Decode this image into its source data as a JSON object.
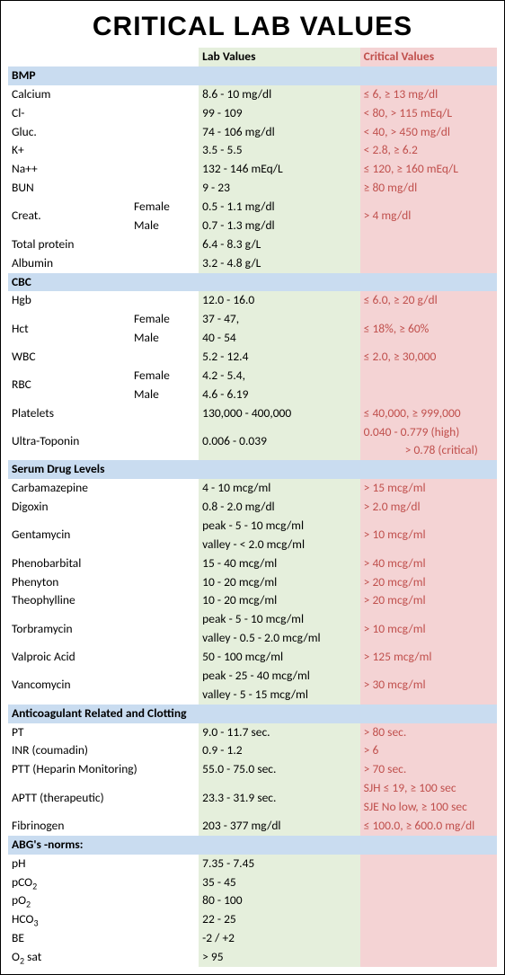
{
  "title": "CRITICAL LAB VALUES",
  "headers": {
    "lab": "Lab Values",
    "crit": "Critical Values"
  },
  "colors": {
    "section_bg": "#c9dcf0",
    "lab_bg": "#e5efdc",
    "crit_bg": "#f4d3d4",
    "crit_text": "#c0504d"
  },
  "sections": {
    "bmp": {
      "title": "BMP",
      "rows": [
        {
          "name": "Calcium",
          "lab": "8.6 - 10 mg/dl",
          "crit": "≤ 6, ≥ 13 mg/dl"
        },
        {
          "name": "Cl-",
          "lab": "99 - 109",
          "crit": "< 80, > 115 mEq/L"
        },
        {
          "name": "Gluc.",
          "lab": "74 - 106 mg/dl",
          "crit": "< 40, > 450 mg/dl"
        },
        {
          "name": "K+",
          "lab": "3.5 - 5.5",
          "crit": "< 2.8, ≥ 6.2"
        },
        {
          "name": "Na++",
          "lab": "132 - 146 mEq/L",
          "crit": "≤ 120, ≥ 160 mEq/L"
        },
        {
          "name": "BUN",
          "lab": "9 - 23",
          "crit": "≥ 80 mg/dl"
        }
      ],
      "creat": {
        "name": "Creat.",
        "female_label": "Female",
        "female_lab": "0.5 - 1.1 mg/dl",
        "male_label": "Male",
        "male_lab": "0.7 - 1.3 mg/dl",
        "crit": "> 4 mg/dl"
      },
      "rows2": [
        {
          "name": "Total protein",
          "lab": "6.4 - 8.3 g/L",
          "crit": ""
        },
        {
          "name": "Albumin",
          "lab": "3.2 - 4.8 g/L",
          "crit": ""
        }
      ]
    },
    "cbc": {
      "title": "CBC",
      "hgb": {
        "name": "Hgb",
        "lab": "12.0 - 16.0",
        "crit": "≤ 6.0, ≥ 20 g/dl"
      },
      "hct": {
        "name": "Hct",
        "female_label": "Female",
        "female_lab": "37 - 47,",
        "male_label": "Male",
        "male_lab": "40 - 54",
        "crit": "≤ 18%, ≥ 60%"
      },
      "wbc": {
        "name": "WBC",
        "lab": "5.2 - 12.4",
        "crit": "≤ 2.0, ≥ 30,000"
      },
      "rbc": {
        "name": "RBC",
        "female_label": "Female",
        "female_lab": "4.2 - 5.4,",
        "male_label": "Male",
        "male_lab": "4.6 - 6.19",
        "crit": ""
      },
      "plt": {
        "name": "Platelets",
        "lab": "130,000 - 400,000",
        "crit": "≤ 40,000, ≥ 999,000"
      },
      "trop": {
        "name": "Ultra-Toponin",
        "lab": "0.006 - 0.039",
        "crit1": "0.040 - 0.779 (high)",
        "crit2": "> 0.78 (critical)"
      }
    },
    "drug": {
      "title": "Serum Drug Levels",
      "rows": [
        {
          "name": "Carbamazepine",
          "lab": "4 - 10 mcg/ml",
          "crit": "> 15 mcg/ml"
        },
        {
          "name": "Digoxin",
          "lab": "0.8 - 2.0 mg/dl",
          "crit": "> 2.0 mg/dl"
        }
      ],
      "genta": {
        "name": "Gentamycin",
        "lab1": "peak -  5 - 10 mcg/ml",
        "lab2": "valley -  < 2.0 mcg/ml",
        "crit": "> 10 mcg/ml"
      },
      "rows2": [
        {
          "name": "Phenobarbital",
          "lab": "15 - 40 mcg/ml",
          "crit": "> 40 mcg/ml"
        },
        {
          "name": "Phenyton",
          "lab": "10 - 20 mcg/ml",
          "crit": "> 20 mcg/ml"
        },
        {
          "name": "Theophylline",
          "lab": "10 - 20 mcg/ml",
          "crit": "> 20 mcg/ml"
        }
      ],
      "torb": {
        "name": "Torbramycin",
        "lab1": "peak -  5 - 10 mcg/ml",
        "lab2": "valley -  0.5 - 2.0 mcg/ml",
        "crit": "> 10 mcg/ml"
      },
      "valp": {
        "name": "Valproic Acid",
        "lab": "50 - 100 mcg/ml",
        "crit": "> 125 mcg/ml"
      },
      "vanc": {
        "name": "Vancomycin",
        "lab1": "peak -  25 - 40 mcg/ml",
        "lab2": "valley -  5 - 15 mcg/ml",
        "crit": "> 30 mcg/ml"
      }
    },
    "coag": {
      "title": "Anticoagulant Related and Clotting",
      "rows": [
        {
          "name": "PT",
          "lab": "9.0 - 11.7 sec.",
          "crit": "> 80 sec."
        },
        {
          "name": "INR (coumadin)",
          "lab": "0.9 - 1.2",
          "crit": "> 6"
        },
        {
          "name": "PTT (Heparin Monitoring)",
          "lab": "55.0 - 75.0 sec.",
          "crit": "> 70 sec."
        }
      ],
      "aptt": {
        "name": "APTT (therapeutic)",
        "lab": "23.3 - 31.9 sec.",
        "crit1": "SJH   ≤ 19, ≥ 100 sec",
        "crit2": "SJE   No low, ≥ 100 sec"
      },
      "fib": {
        "name": "Fibrinogen",
        "lab": "203 - 377 mg/dl",
        "crit": "≤ 100.0, ≥ 600.0 mg/dl"
      }
    },
    "abg": {
      "title": "ABG's -norms:",
      "rows": [
        {
          "name": "pH",
          "lab": "7.35 - 7.45"
        },
        {
          "name": "pCO2",
          "sub": "2",
          "base": "pCO",
          "lab": "35 - 45"
        },
        {
          "name": "pO2",
          "sub": "2",
          "base": "pO",
          "lab": "80 - 100"
        },
        {
          "name": "HCO3",
          "sub": "3",
          "base": "HCO",
          "lab": "22 - 25"
        },
        {
          "name": "BE",
          "lab": "-2 / +2"
        },
        {
          "name": "O2 sat",
          "sub": "2",
          "base": "O",
          "suffix": " sat",
          "lab": "> 95"
        }
      ]
    }
  }
}
